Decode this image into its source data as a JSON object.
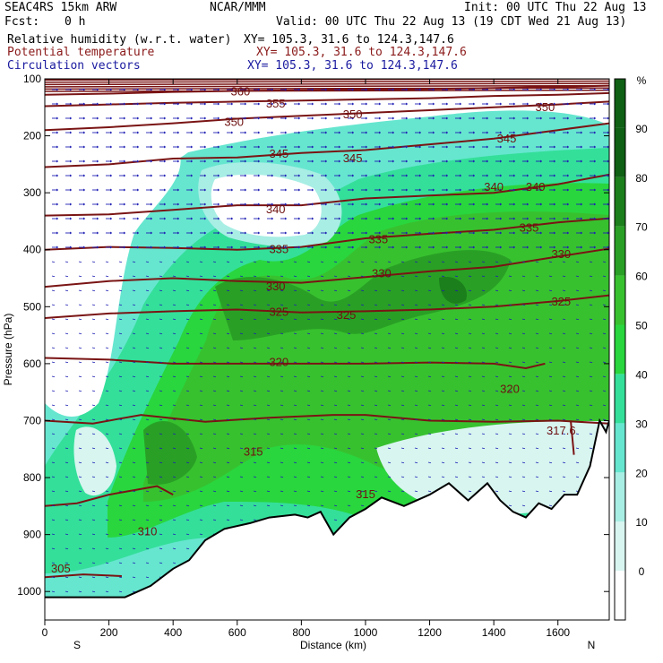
{
  "header": {
    "model": "SEAC4RS 15km ARW",
    "center": "NCAR/MMM",
    "init": "Init: 00 UTC Thu 22 Aug 13",
    "fcst_label": "Fcst:",
    "fcst_value": "0 h",
    "valid": "Valid: 00 UTC Thu 22 Aug 13 (19 CDT Wed 21 Aug 13)",
    "fields": [
      {
        "name": "Relative humidity (w.r.t. water)",
        "xy": "XY= 105.3, 31.6 to 124.3,147.6",
        "color": "#000000"
      },
      {
        "name": "Potential temperature",
        "xy": "XY= 105.3, 31.6 to 124.3,147.6",
        "color": "#8b1a1a"
      },
      {
        "name": "Circulation vectors",
        "xy": "XY= 105.3, 31.6 to 124.3,147.6",
        "color": "#1a1aa0"
      }
    ]
  },
  "chart_data": {
    "type": "heatmap",
    "title": "",
    "xlabel": "Distance (km)",
    "ylabel": "Pressure (hPa)",
    "xlim": [
      0,
      1760
    ],
    "ylim": [
      1050,
      100
    ],
    "xticks": [
      0,
      200,
      400,
      600,
      800,
      1000,
      1200,
      1400,
      1600
    ],
    "yticks": [
      100,
      200,
      300,
      400,
      500,
      600,
      700,
      800,
      900,
      1000
    ],
    "x_end_labels": {
      "left": "S",
      "right": "N"
    },
    "colorbar": {
      "unit": "%",
      "levels": [
        0,
        10,
        20,
        30,
        40,
        50,
        60,
        70,
        80,
        90
      ],
      "colors": [
        "#ffffff",
        "#d8f5f0",
        "#a8eee4",
        "#66e6cf",
        "#34df9a",
        "#29d63e",
        "#38c12f",
        "#29a025",
        "#1b7f1b",
        "#0f5f14"
      ]
    },
    "theta_contours": [
      {
        "label": "305",
        "points": [
          [
            0,
            975
          ],
          [
            120,
            970
          ],
          [
            240,
            973
          ]
        ]
      },
      {
        "label": "310",
        "points": [
          [
            0,
            850
          ],
          [
            100,
            845
          ],
          [
            200,
            830
          ],
          [
            350,
            815
          ],
          [
            400,
            830
          ]
        ]
      },
      {
        "label": "315",
        "points": [
          [
            0,
            700
          ],
          [
            150,
            705
          ],
          [
            300,
            690
          ],
          [
            500,
            702
          ],
          [
            700,
            695
          ],
          [
            900,
            690
          ],
          [
            1000,
            690
          ],
          [
            1200,
            700
          ],
          [
            1400,
            702
          ],
          [
            1600,
            700
          ],
          [
            1760,
            705
          ]
        ]
      },
      {
        "label": "317.6",
        "points": [
          [
            1640,
            700
          ],
          [
            1650,
            760
          ]
        ]
      },
      {
        "label": "320",
        "points": [
          [
            0,
            590
          ],
          [
            200,
            593
          ],
          [
            400,
            600
          ],
          [
            600,
            600
          ],
          [
            800,
            600
          ],
          [
            1000,
            600
          ],
          [
            1200,
            598
          ],
          [
            1400,
            600
          ],
          [
            1500,
            608
          ],
          [
            1560,
            600
          ]
        ]
      },
      {
        "label": "325",
        "points": [
          [
            0,
            520
          ],
          [
            200,
            512
          ],
          [
            400,
            508
          ],
          [
            600,
            505
          ],
          [
            800,
            510
          ],
          [
            1000,
            508
          ],
          [
            1200,
            505
          ],
          [
            1400,
            500
          ],
          [
            1600,
            490
          ],
          [
            1760,
            480
          ]
        ]
      },
      {
        "label": "330",
        "points": [
          [
            0,
            465
          ],
          [
            200,
            455
          ],
          [
            400,
            450
          ],
          [
            600,
            455
          ],
          [
            800,
            458
          ],
          [
            1000,
            448
          ],
          [
            1200,
            438
          ],
          [
            1400,
            430
          ],
          [
            1600,
            412
          ],
          [
            1760,
            398
          ]
        ]
      },
      {
        "label": "335",
        "points": [
          [
            0,
            400
          ],
          [
            200,
            395
          ],
          [
            400,
            397
          ],
          [
            600,
            400
          ],
          [
            800,
            395
          ],
          [
            1000,
            380
          ],
          [
            1200,
            372
          ],
          [
            1400,
            365
          ],
          [
            1600,
            352
          ],
          [
            1760,
            345
          ]
        ]
      },
      {
        "label": "340",
        "points": [
          [
            0,
            340
          ],
          [
            200,
            338
          ],
          [
            400,
            330
          ],
          [
            600,
            322
          ],
          [
            800,
            322
          ],
          [
            1000,
            310
          ],
          [
            1200,
            305
          ],
          [
            1400,
            300
          ],
          [
            1600,
            285
          ],
          [
            1760,
            268
          ]
        ]
      },
      {
        "label": "345",
        "points": [
          [
            0,
            255
          ],
          [
            200,
            250
          ],
          [
            400,
            240
          ],
          [
            600,
            238
          ],
          [
            800,
            230
          ],
          [
            1000,
            225
          ],
          [
            1200,
            215
          ],
          [
            1400,
            205
          ],
          [
            1600,
            190
          ],
          [
            1760,
            178
          ]
        ]
      },
      {
        "label": "350",
        "points": [
          [
            0,
            190
          ],
          [
            200,
            185
          ],
          [
            400,
            178
          ],
          [
            600,
            170
          ],
          [
            800,
            165
          ],
          [
            1000,
            160
          ],
          [
            1200,
            155
          ],
          [
            1400,
            150
          ],
          [
            1600,
            145
          ],
          [
            1760,
            140
          ]
        ]
      },
      {
        "label": "355",
        "points": [
          [
            0,
            148
          ],
          [
            200,
            145
          ],
          [
            400,
            142
          ],
          [
            600,
            140
          ],
          [
            800,
            138
          ],
          [
            1000,
            136
          ],
          [
            1200,
            134
          ],
          [
            1400,
            130
          ],
          [
            1600,
            128
          ],
          [
            1760,
            125
          ]
        ]
      },
      {
        "label": "360",
        "points": [
          [
            0,
            128
          ],
          [
            200,
            126
          ],
          [
            400,
            123
          ],
          [
            600,
            121
          ],
          [
            800,
            120
          ],
          [
            1000,
            119
          ],
          [
            1200,
            118
          ],
          [
            1400,
            116
          ],
          [
            1600,
            114
          ],
          [
            1760,
            112
          ]
        ]
      }
    ],
    "terrain_surface": [
      [
        0,
        1010
      ],
      [
        250,
        1010
      ],
      [
        330,
        990
      ],
      [
        400,
        960
      ],
      [
        450,
        945
      ],
      [
        500,
        910
      ],
      [
        560,
        890
      ],
      [
        640,
        880
      ],
      [
        700,
        870
      ],
      [
        780,
        865
      ],
      [
        820,
        870
      ],
      [
        860,
        860
      ],
      [
        900,
        900
      ],
      [
        950,
        870
      ],
      [
        1000,
        855
      ],
      [
        1050,
        835
      ],
      [
        1120,
        850
      ],
      [
        1200,
        830
      ],
      [
        1260,
        810
      ],
      [
        1320,
        840
      ],
      [
        1380,
        810
      ],
      [
        1420,
        840
      ],
      [
        1460,
        860
      ],
      [
        1500,
        870
      ],
      [
        1540,
        845
      ],
      [
        1580,
        855
      ],
      [
        1620,
        830
      ],
      [
        1660,
        830
      ],
      [
        1700,
        780
      ],
      [
        1730,
        700
      ],
      [
        1750,
        720
      ],
      [
        1760,
        700
      ]
    ],
    "contour_labels": [
      {
        "text": "360",
        "x": 610,
        "p": 123
      },
      {
        "text": "355",
        "x": 720,
        "p": 144
      },
      {
        "text": "350",
        "x": 590,
        "p": 176
      },
      {
        "text": "350",
        "x": 960,
        "p": 163
      },
      {
        "text": "350",
        "x": 1560,
        "p": 150
      },
      {
        "text": "345",
        "x": 730,
        "p": 232
      },
      {
        "text": "345",
        "x": 960,
        "p": 240
      },
      {
        "text": "345",
        "x": 1440,
        "p": 205
      },
      {
        "text": "340",
        "x": 720,
        "p": 330
      },
      {
        "text": "340",
        "x": 1400,
        "p": 290
      },
      {
        "text": "340",
        "x": 1530,
        "p": 290
      },
      {
        "text": "335",
        "x": 730,
        "p": 400
      },
      {
        "text": "335",
        "x": 1040,
        "p": 382
      },
      {
        "text": "335",
        "x": 1510,
        "p": 362
      },
      {
        "text": "330",
        "x": 720,
        "p": 465
      },
      {
        "text": "330",
        "x": 1050,
        "p": 442
      },
      {
        "text": "330",
        "x": 1610,
        "p": 408
      },
      {
        "text": "325",
        "x": 730,
        "p": 510
      },
      {
        "text": "325",
        "x": 940,
        "p": 515
      },
      {
        "text": "325",
        "x": 1610,
        "p": 492
      },
      {
        "text": "320",
        "x": 730,
        "p": 598
      },
      {
        "text": "320",
        "x": 1450,
        "p": 645
      },
      {
        "text": "317.6",
        "x": 1610,
        "p": 718
      },
      {
        "text": "315",
        "x": 650,
        "p": 755
      },
      {
        "text": "315",
        "x": 1000,
        "p": 830
      },
      {
        "text": "310",
        "x": 320,
        "p": 895
      },
      {
        "text": "305",
        "x": 50,
        "p": 960
      }
    ]
  }
}
